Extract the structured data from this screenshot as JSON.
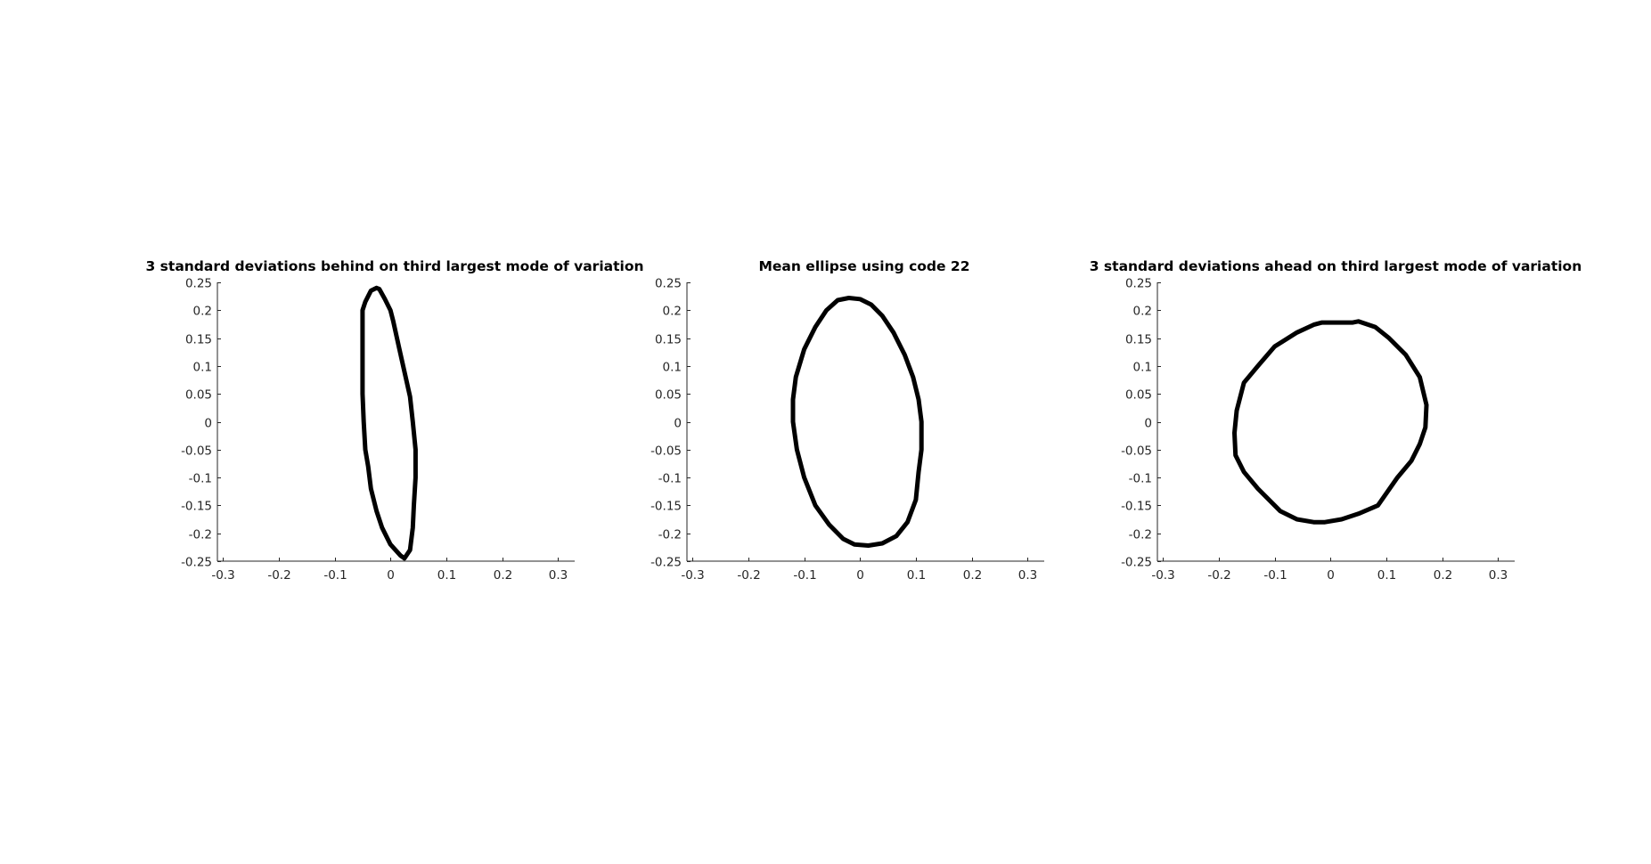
{
  "chart_data": [
    {
      "type": "line",
      "title": "3 standard deviations behind on third largest mode of variation",
      "xlabel": "",
      "ylabel": "",
      "xlim": [
        -0.31,
        0.33
      ],
      "ylim": [
        -0.25,
        0.25
      ],
      "xticks": [
        -0.3,
        -0.2,
        -0.1,
        0,
        0.1,
        0.2,
        0.3
      ],
      "xtick_labels": [
        "-0.3",
        "-0.2",
        "-0.1",
        "0",
        "0.1",
        "0.2",
        "0.3"
      ],
      "yticks": [
        0.25,
        0.2,
        0.15,
        0.1,
        0.05,
        0,
        -0.05,
        -0.1,
        -0.15,
        -0.2,
        -0.25
      ],
      "ytick_labels": [
        "0.25",
        "0.2",
        "0.15",
        "0.1",
        "0.05",
        "0",
        "-0.05",
        "-0.1",
        "-0.15",
        "-0.2",
        "-0.25"
      ],
      "grid": false,
      "line_color": "#000000",
      "series": [
        {
          "x": [
            -0.025,
            -0.02,
            -0.01,
            0.0,
            0.005,
            0.015,
            0.025,
            0.035,
            0.04,
            0.045,
            0.045,
            0.045,
            0.042,
            0.04,
            0.035,
            0.025,
            0.018,
            0.0,
            -0.015,
            -0.025,
            -0.035,
            -0.04,
            -0.045,
            -0.048,
            -0.05,
            -0.05,
            -0.05,
            -0.05,
            -0.045,
            -0.035,
            -0.025
          ],
          "y": [
            0.24,
            0.238,
            0.22,
            0.2,
            0.18,
            0.135,
            0.09,
            0.045,
            0.0,
            -0.05,
            -0.075,
            -0.1,
            -0.15,
            -0.19,
            -0.23,
            -0.245,
            -0.24,
            -0.22,
            -0.19,
            -0.16,
            -0.12,
            -0.08,
            -0.05,
            0.0,
            0.05,
            0.1,
            0.15,
            0.2,
            0.215,
            0.235,
            0.24
          ]
        }
      ]
    },
    {
      "type": "line",
      "title": "Mean ellipse using code 22",
      "xlabel": "",
      "ylabel": "",
      "xlim": [
        -0.31,
        0.33
      ],
      "ylim": [
        -0.25,
        0.25
      ],
      "xticks": [
        -0.3,
        -0.2,
        -0.1,
        0,
        0.1,
        0.2,
        0.3
      ],
      "xtick_labels": [
        "-0.3",
        "-0.2",
        "-0.1",
        "0",
        "0.1",
        "0.2",
        "0.3"
      ],
      "yticks": [
        0.25,
        0.2,
        0.15,
        0.1,
        0.05,
        0,
        -0.05,
        -0.1,
        -0.15,
        -0.2,
        -0.25
      ],
      "ytick_labels": [
        "0.25",
        "0.2",
        "0.15",
        "0.1",
        "0.05",
        "0",
        "-0.05",
        "-0.1",
        "-0.15",
        "-0.2",
        "-0.25"
      ],
      "grid": false,
      "line_color": "#000000",
      "series": [
        {
          "x": [
            -0.02,
            0.0,
            0.02,
            0.04,
            0.06,
            0.08,
            0.095,
            0.105,
            0.11,
            0.11,
            0.105,
            0.1,
            0.085,
            0.065,
            0.04,
            0.015,
            -0.01,
            -0.03,
            -0.055,
            -0.08,
            -0.1,
            -0.113,
            -0.12,
            -0.12,
            -0.115,
            -0.1,
            -0.08,
            -0.06,
            -0.04,
            -0.02
          ],
          "y": [
            0.222,
            0.22,
            0.21,
            0.19,
            0.16,
            0.12,
            0.08,
            0.04,
            0.0,
            -0.05,
            -0.09,
            -0.14,
            -0.18,
            -0.205,
            -0.218,
            -0.222,
            -0.22,
            -0.21,
            -0.185,
            -0.15,
            -0.1,
            -0.05,
            0.0,
            0.04,
            0.08,
            0.13,
            0.17,
            0.2,
            0.218,
            0.222
          ]
        }
      ]
    },
    {
      "type": "line",
      "title": "3 standard deviations ahead on third largest mode of variation",
      "xlabel": "",
      "ylabel": "",
      "xlim": [
        -0.31,
        0.33
      ],
      "ylim": [
        -0.25,
        0.25
      ],
      "xticks": [
        -0.3,
        -0.2,
        -0.1,
        0,
        0.1,
        0.2,
        0.3
      ],
      "xtick_labels": [
        "-0.3",
        "-0.2",
        "-0.1",
        "0",
        "0.1",
        "0.2",
        "0.3"
      ],
      "yticks": [
        0.25,
        0.2,
        0.15,
        0.1,
        0.05,
        0,
        -0.05,
        -0.1,
        -0.15,
        -0.2,
        -0.25
      ],
      "ytick_labels": [
        "0.25",
        "0.2",
        "0.15",
        "0.1",
        "0.05",
        "0",
        "-0.05",
        "-0.1",
        "-0.15",
        "-0.2",
        "-0.25"
      ],
      "grid": false,
      "line_color": "#000000",
      "series": [
        {
          "x": [
            -0.015,
            0.04,
            0.05,
            0.08,
            0.105,
            0.135,
            0.16,
            0.172,
            0.17,
            0.16,
            0.145,
            0.12,
            0.085,
            0.05,
            0.02,
            -0.01,
            -0.03,
            -0.06,
            -0.09,
            -0.13,
            -0.155,
            -0.17,
            -0.172,
            -0.168,
            -0.155,
            -0.13,
            -0.1,
            -0.06,
            -0.03,
            -0.015
          ],
          "y": [
            0.178,
            0.178,
            0.18,
            0.17,
            0.15,
            0.12,
            0.08,
            0.03,
            -0.01,
            -0.04,
            -0.07,
            -0.1,
            -0.15,
            -0.165,
            -0.175,
            -0.18,
            -0.18,
            -0.175,
            -0.16,
            -0.12,
            -0.09,
            -0.06,
            -0.02,
            0.02,
            0.07,
            0.1,
            0.135,
            0.16,
            0.174,
            0.178
          ]
        }
      ]
    }
  ]
}
